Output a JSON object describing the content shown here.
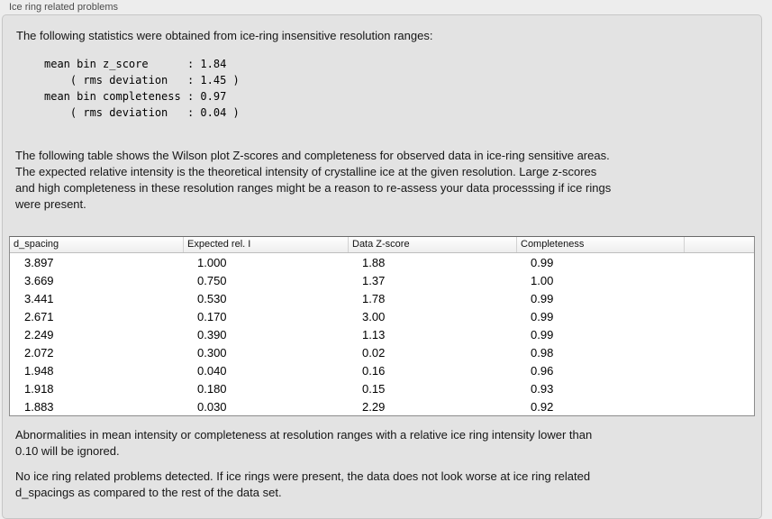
{
  "panel": {
    "title": "Ice ring related problems"
  },
  "intro": "The following statistics were obtained from ice-ring insensitive resolution ranges:",
  "stats_block": "mean bin z_score      : 1.84\n    ( rms deviation   : 1.45 )\nmean bin completeness : 0.97\n    ( rms deviation   : 0.04 )",
  "wilson_note": "The following table shows the Wilson plot Z-scores and completeness for observed data in ice-ring sensitive areas.\nThe expected relative intensity is the theoretical intensity of crystalline ice at the given resolution. Large z-scores\nand high completeness in these resolution ranges might be a reason to re-assess your data processsing if ice rings\nwere present.",
  "table": {
    "columns": [
      "d_spacing",
      "Expected rel. I",
      "Data Z-score",
      "Completeness"
    ],
    "rows": [
      [
        "3.897",
        "1.000",
        "1.88",
        "0.99"
      ],
      [
        "3.669",
        "0.750",
        "1.37",
        "1.00"
      ],
      [
        "3.441",
        "0.530",
        "1.78",
        "0.99"
      ],
      [
        "2.671",
        "0.170",
        "3.00",
        "0.99"
      ],
      [
        "2.249",
        "0.390",
        "1.13",
        "0.99"
      ],
      [
        "2.072",
        "0.300",
        "0.02",
        "0.98"
      ],
      [
        "1.948",
        "0.040",
        "0.16",
        "0.96"
      ],
      [
        "1.918",
        "0.180",
        "0.15",
        "0.93"
      ],
      [
        "1.883",
        "0.030",
        "2.29",
        "0.92"
      ]
    ]
  },
  "ignore_note": "Abnormalities in mean intensity or completeness at resolution ranges with a relative ice ring intensity lower than\n0.10 will be ignored.",
  "conclusion": "No ice ring related problems detected. If ice rings were present, the data does not look worse at ice ring related\nd_spacings as compared to the rest of the data set.",
  "colors": {
    "outer_bg": "#ededed",
    "panel_bg": "#e3e3e3",
    "panel_border": "#c6c6c6",
    "table_border": "#8c8c8c",
    "header_gradient_top": "#ffffff",
    "header_gradient_bottom": "#eeeeee"
  }
}
